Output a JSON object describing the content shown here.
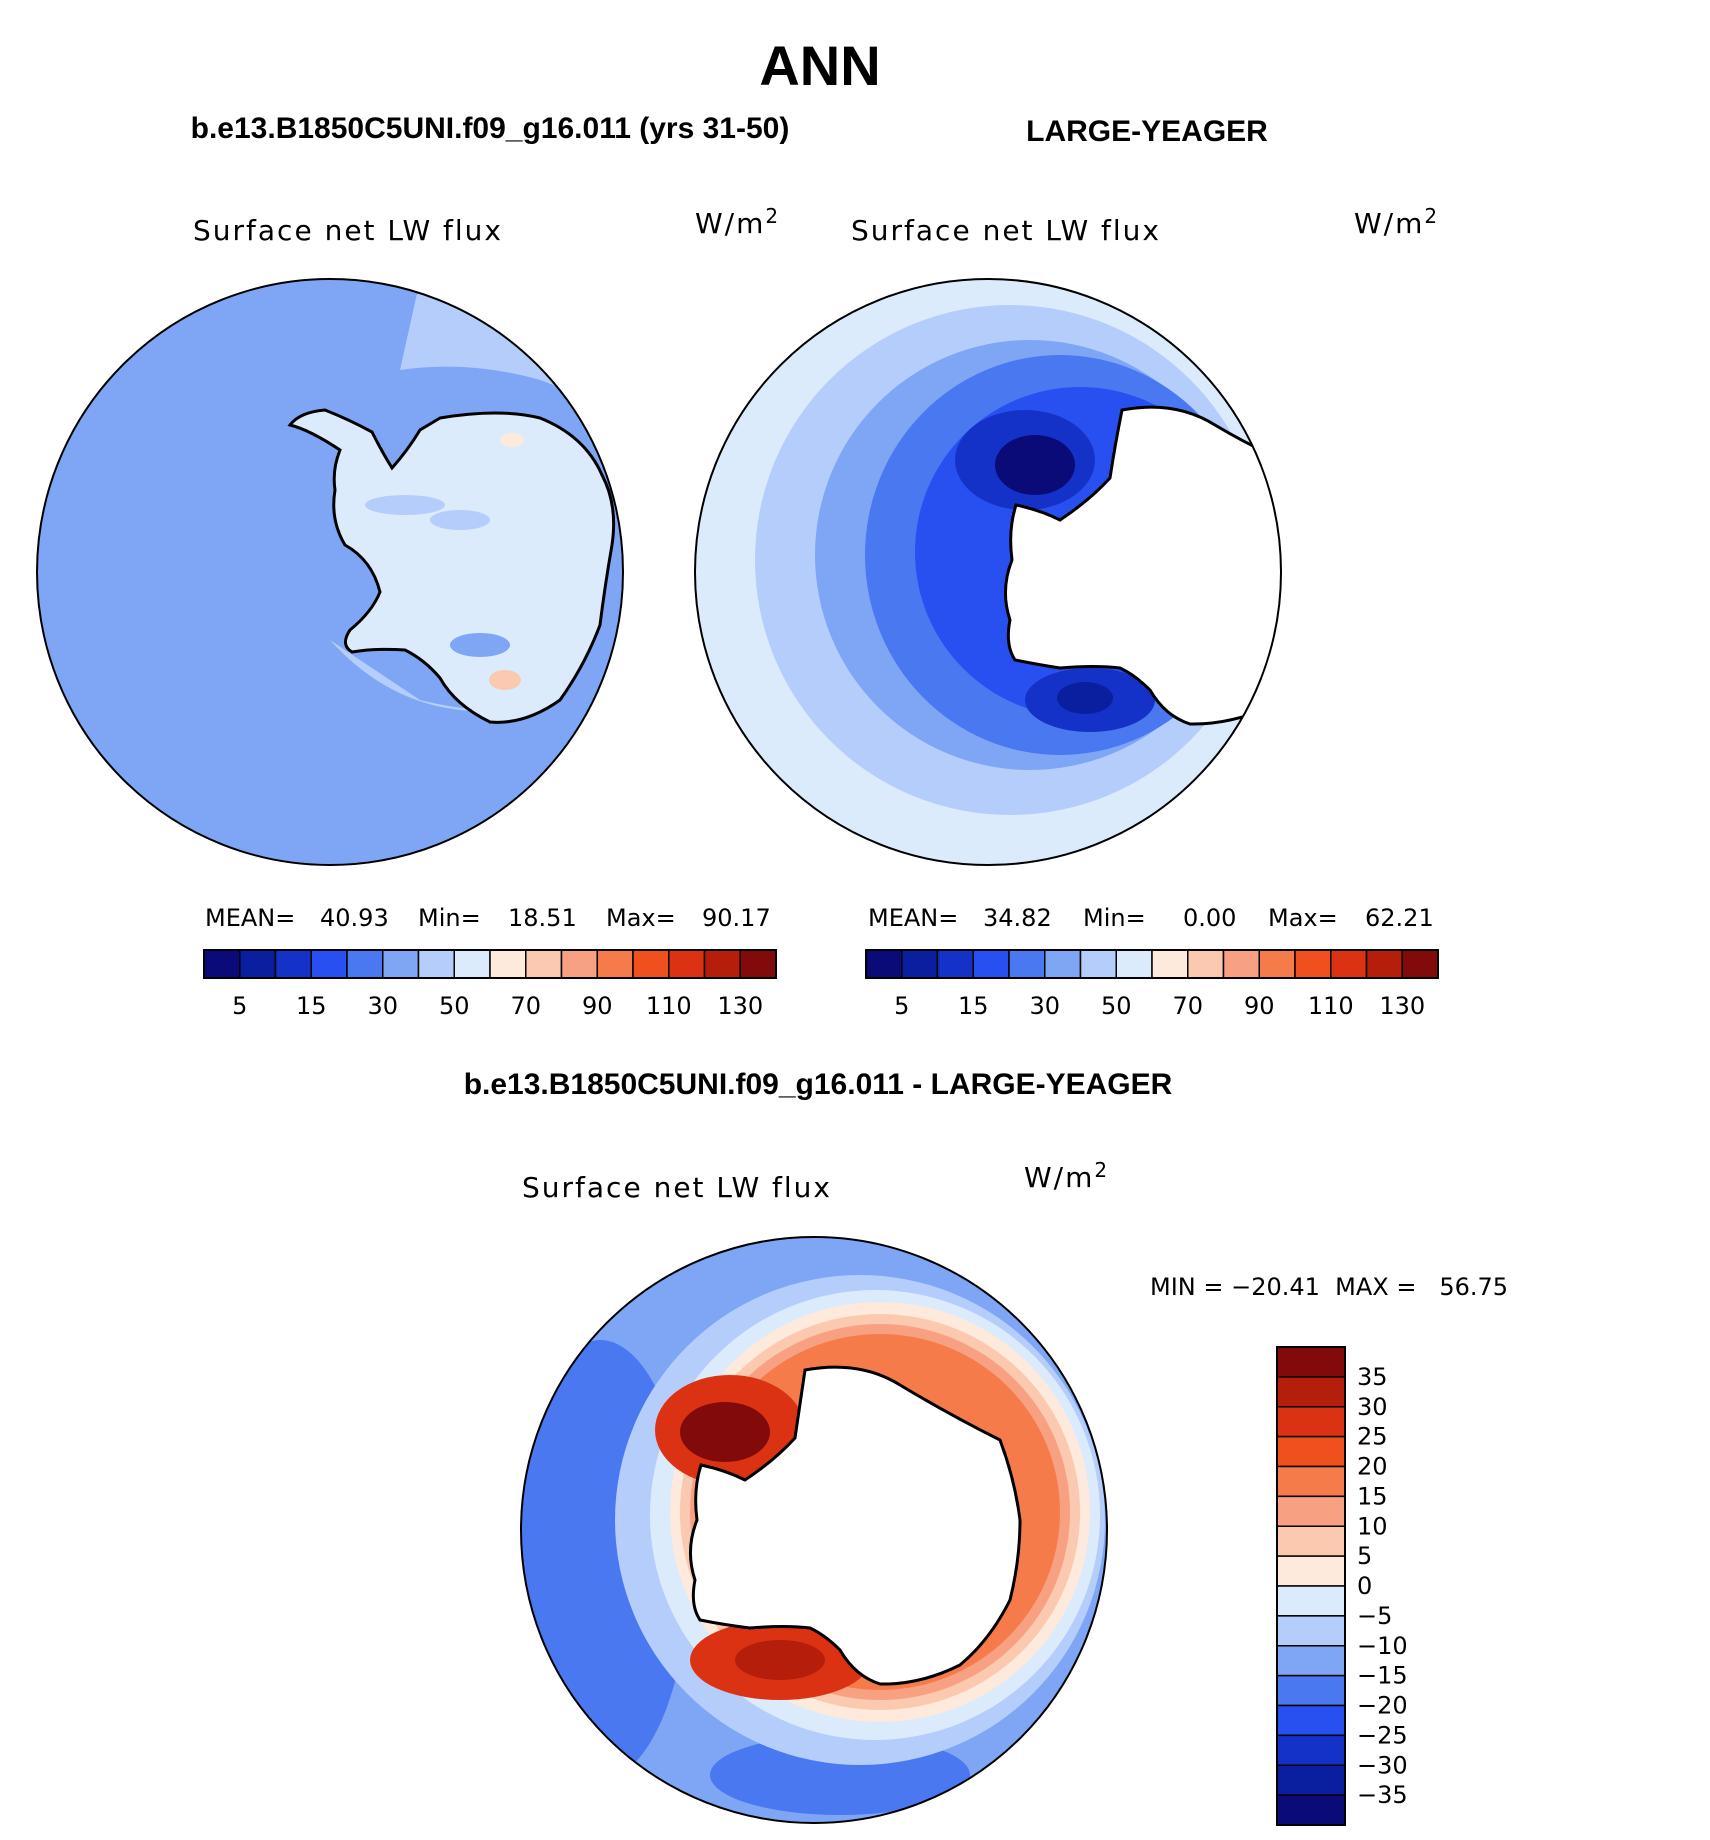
{
  "chart_data": {
    "type": "heatmap",
    "title": "ANN",
    "panels": [
      {
        "id": "model",
        "header": "b.e13.B1850C5UNI.f09_g16.011 (yrs 31-50)",
        "variable": "Surface net LW flux",
        "units_base": "W/m",
        "units_exp": "2",
        "stats": {
          "mean_label": "MEAN=",
          "mean": "40.93",
          "min_label": "Min=",
          "min": "18.51",
          "max_label": "Max=",
          "max": "90.17"
        },
        "colorbar_ticks": [
          "5",
          "15",
          "30",
          "50",
          "70",
          "90",
          "110",
          "130"
        ]
      },
      {
        "id": "obs",
        "header": "LARGE-YEAGER",
        "variable": "Surface net LW flux",
        "units_base": "W/m",
        "units_exp": "2",
        "stats": {
          "mean_label": "MEAN=",
          "mean": "34.82",
          "min_label": "Min=",
          "min": "0.00",
          "max_label": "Max=",
          "max": "62.21"
        },
        "colorbar_ticks": [
          "5",
          "15",
          "30",
          "50",
          "70",
          "90",
          "110",
          "130"
        ]
      },
      {
        "id": "diff",
        "header": "b.e13.B1850C5UNI.f09_g16.011 - LARGE-YEAGER",
        "variable": "Surface net LW flux",
        "units_base": "W/m",
        "units_exp": "2",
        "minmax_text": "MIN = −20.41  MAX =   56.75",
        "colorbar_ticks": [
          "35",
          "30",
          "25",
          "20",
          "15",
          "10",
          "5",
          "0",
          "−5",
          "−10",
          "−15",
          "−20",
          "−25",
          "−30",
          "−35"
        ]
      }
    ],
    "abs_colors": [
      "#0a0a78",
      "#0a1ea0",
      "#1432c8",
      "#2850f0",
      "#4a78f0",
      "#7ea6f5",
      "#b4cdfa",
      "#dcebfc",
      "#fdeadc",
      "#fbc8b0",
      "#f7a182",
      "#f57b4a",
      "#f0501e",
      "#dc3214",
      "#b41e0a",
      "#820a0a"
    ],
    "diff_colors": [
      "#820a0a",
      "#b41e0a",
      "#dc3214",
      "#f0501e",
      "#f57b4a",
      "#f7a182",
      "#fbc8b0",
      "#fdeadc",
      "#dcebfc",
      "#b4cdfa",
      "#7ea6f5",
      "#4a78f0",
      "#2850f0",
      "#1432c8",
      "#0a1ea0",
      "#0a0a78"
    ]
  }
}
